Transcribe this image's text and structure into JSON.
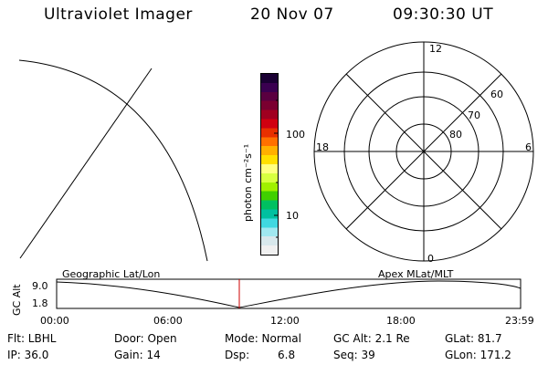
{
  "header": {
    "instrument": "Ultraviolet Imager",
    "date": "20 Nov 07",
    "time": "09:30:30 UT"
  },
  "colorbar": {
    "unit_label": "photon cm⁻²s⁻¹",
    "ticks": [
      "100",
      "10"
    ],
    "colors": [
      "#1a0033",
      "#3a0050",
      "#5a0040",
      "#7a0030",
      "#a00020",
      "#d00010",
      "#e83000",
      "#ff7000",
      "#ffb000",
      "#ffe000",
      "#ffff80",
      "#d8ff40",
      "#a0f000",
      "#40d000",
      "#00c060",
      "#00c0a0",
      "#40d8e0",
      "#a0e8f0",
      "#d8e8ec",
      "#f0f0f0"
    ]
  },
  "polar": {
    "mlt_labels": {
      "top": "12",
      "bottom": "0",
      "left": "18",
      "right": "6"
    },
    "lat_labels": [
      "60",
      "70",
      "80"
    ]
  },
  "altitude_plot": {
    "ylabel": "GC Alt",
    "ymax_label": "9.0",
    "ymin_label": "1.8",
    "left_title": "Geographic Lat/Lon",
    "right_title": "Apex MLat/MLT",
    "x_ticks": [
      "00:00",
      "06:00",
      "12:00",
      "18:00",
      "23:59"
    ],
    "marker_color": "#cc0000"
  },
  "status": {
    "flt": "Flt: LBHL",
    "ip": "IP: 36.0",
    "door": "Door: Open",
    "gain": "Gain: 14",
    "mode": "Mode: Normal",
    "dsp_label": "Dsp:",
    "dsp_value": "6.8",
    "gc_alt": "GC Alt: 2.1 Re",
    "seq": "Seq: 39",
    "glat": "GLat:  81.7",
    "glon": "GLon: 171.2"
  }
}
